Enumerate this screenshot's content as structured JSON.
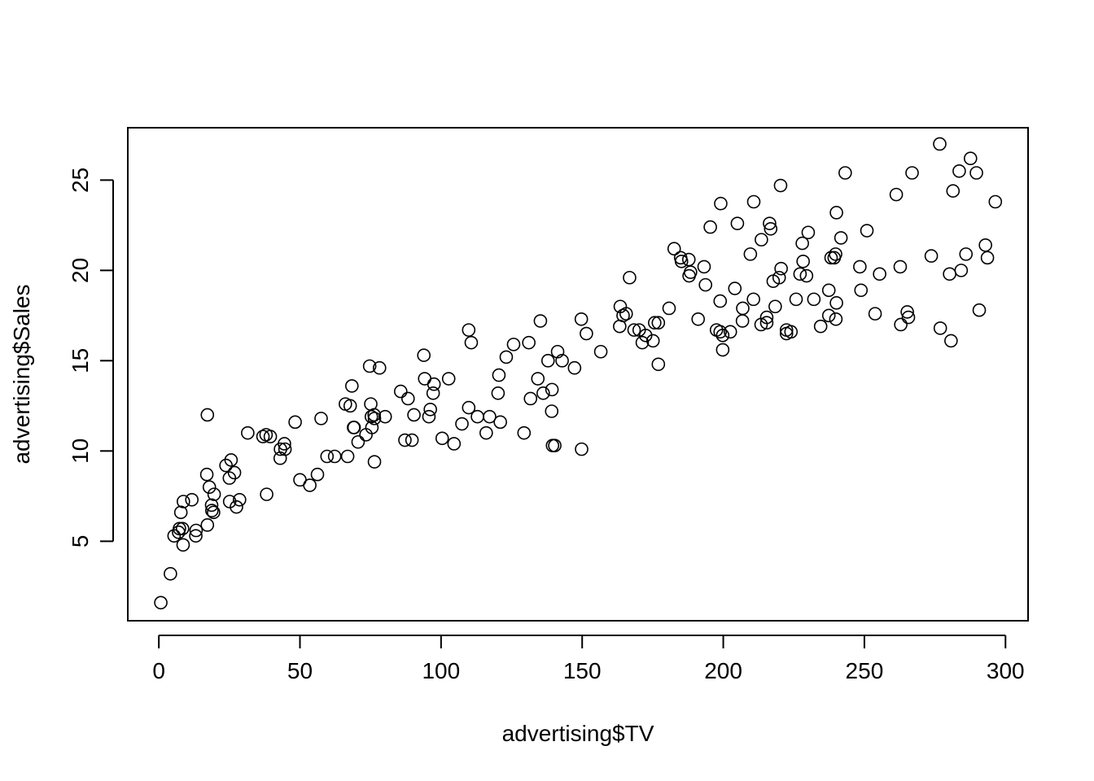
{
  "chart_data": {
    "type": "scatter",
    "title": "",
    "xlabel": "advertising$TV",
    "ylabel": "advertising$Sales",
    "xlim": [
      -11,
      308
    ],
    "ylim": [
      0.6,
      27.9
    ],
    "xticks": [
      0,
      50,
      100,
      150,
      200,
      250,
      300
    ],
    "yticks": [
      5,
      10,
      15,
      20,
      25
    ],
    "grid": false,
    "marker": "open-circle",
    "colors": {
      "marker": "#000000",
      "axis": "#000000",
      "background": "#ffffff"
    },
    "points": [
      [
        0.7,
        1.6
      ],
      [
        4.1,
        3.2
      ],
      [
        5.4,
        5.3
      ],
      [
        7.0,
        5.5
      ],
      [
        7.3,
        5.7
      ],
      [
        8.4,
        5.7
      ],
      [
        8.6,
        4.8
      ],
      [
        7.8,
        6.6
      ],
      [
        8.7,
        7.2
      ],
      [
        11.7,
        7.3
      ],
      [
        13.1,
        5.3
      ],
      [
        13.2,
        5.6
      ],
      [
        17.0,
        8.7
      ],
      [
        17.2,
        12.0
      ],
      [
        17.2,
        5.9
      ],
      [
        17.9,
        8.0
      ],
      [
        18.7,
        7.0
      ],
      [
        18.8,
        6.7
      ],
      [
        19.4,
        6.6
      ],
      [
        19.6,
        7.6
      ],
      [
        23.8,
        9.2
      ],
      [
        25.0,
        8.5
      ],
      [
        25.1,
        7.2
      ],
      [
        25.6,
        9.5
      ],
      [
        26.8,
        8.8
      ],
      [
        27.5,
        6.9
      ],
      [
        28.6,
        7.3
      ],
      [
        31.5,
        11.0
      ],
      [
        36.9,
        10.8
      ],
      [
        38.0,
        10.9
      ],
      [
        38.2,
        7.6
      ],
      [
        39.5,
        10.8
      ],
      [
        43.0,
        9.6
      ],
      [
        43.1,
        10.1
      ],
      [
        44.5,
        10.4
      ],
      [
        44.7,
        10.1
      ],
      [
        48.3,
        11.6
      ],
      [
        50.0,
        8.4
      ],
      [
        53.5,
        8.1
      ],
      [
        56.2,
        8.7
      ],
      [
        57.5,
        11.8
      ],
      [
        59.6,
        9.7
      ],
      [
        62.3,
        9.7
      ],
      [
        66.1,
        12.6
      ],
      [
        66.9,
        9.7
      ],
      [
        67.8,
        12.5
      ],
      [
        68.4,
        13.6
      ],
      [
        69.0,
        11.3
      ],
      [
        69.2,
        11.3
      ],
      [
        70.6,
        10.5
      ],
      [
        73.4,
        10.9
      ],
      [
        74.7,
        14.7
      ],
      [
        75.1,
        12.6
      ],
      [
        75.3,
        11.9
      ],
      [
        75.5,
        11.3
      ],
      [
        76.3,
        12.0
      ],
      [
        76.4,
        11.8
      ],
      [
        76.4,
        9.4
      ],
      [
        78.2,
        14.6
      ],
      [
        80.2,
        11.9
      ],
      [
        85.7,
        13.3
      ],
      [
        87.2,
        10.6
      ],
      [
        88.3,
        12.9
      ],
      [
        89.7,
        10.6
      ],
      [
        90.4,
        12.0
      ],
      [
        93.9,
        15.3
      ],
      [
        94.2,
        14.0
      ],
      [
        95.7,
        11.9
      ],
      [
        96.2,
        12.3
      ],
      [
        97.2,
        13.2
      ],
      [
        97.5,
        13.7
      ],
      [
        100.4,
        10.7
      ],
      [
        102.7,
        14.0
      ],
      [
        104.6,
        10.4
      ],
      [
        107.4,
        11.5
      ],
      [
        109.8,
        16.7
      ],
      [
        110.7,
        16.0
      ],
      [
        109.8,
        12.4
      ],
      [
        112.9,
        11.9
      ],
      [
        116.0,
        11.0
      ],
      [
        117.2,
        11.9
      ],
      [
        120.2,
        13.2
      ],
      [
        120.5,
        14.2
      ],
      [
        121.0,
        11.6
      ],
      [
        123.1,
        15.2
      ],
      [
        125.7,
        15.9
      ],
      [
        129.4,
        11.0
      ],
      [
        131.1,
        16.0
      ],
      [
        131.7,
        12.9
      ],
      [
        134.3,
        14.0
      ],
      [
        135.2,
        17.2
      ],
      [
        136.2,
        13.2
      ],
      [
        137.9,
        15.0
      ],
      [
        139.2,
        12.2
      ],
      [
        139.3,
        13.4
      ],
      [
        139.5,
        10.3
      ],
      [
        140.3,
        10.3
      ],
      [
        141.3,
        15.5
      ],
      [
        142.9,
        15.0
      ],
      [
        147.3,
        14.6
      ],
      [
        149.7,
        17.3
      ],
      [
        149.8,
        10.1
      ],
      [
        151.5,
        16.5
      ],
      [
        156.6,
        15.5
      ],
      [
        163.3,
        16.9
      ],
      [
        163.5,
        18.0
      ],
      [
        164.5,
        17.5
      ],
      [
        165.6,
        17.6
      ],
      [
        166.8,
        19.6
      ],
      [
        168.4,
        16.7
      ],
      [
        170.2,
        16.7
      ],
      [
        171.3,
        16.0
      ],
      [
        172.5,
        16.4
      ],
      [
        175.1,
        16.1
      ],
      [
        175.7,
        17.1
      ],
      [
        177.0,
        17.1
      ],
      [
        177.0,
        14.8
      ],
      [
        180.8,
        17.9
      ],
      [
        182.6,
        21.2
      ],
      [
        184.9,
        20.7
      ],
      [
        185.2,
        20.5
      ],
      [
        187.8,
        20.6
      ],
      [
        188.4,
        19.9
      ],
      [
        187.9,
        19.7
      ],
      [
        191.1,
        17.3
      ],
      [
        193.2,
        20.2
      ],
      [
        193.7,
        19.2
      ],
      [
        195.4,
        22.4
      ],
      [
        197.6,
        16.7
      ],
      [
        198.9,
        16.6
      ],
      [
        198.9,
        18.3
      ],
      [
        199.1,
        23.7
      ],
      [
        199.8,
        16.4
      ],
      [
        199.8,
        15.6
      ],
      [
        202.5,
        16.6
      ],
      [
        204.1,
        19.0
      ],
      [
        205.0,
        22.6
      ],
      [
        206.8,
        17.2
      ],
      [
        206.9,
        17.9
      ],
      [
        209.6,
        20.9
      ],
      [
        210.7,
        18.4
      ],
      [
        210.8,
        23.8
      ],
      [
        213.4,
        17.0
      ],
      [
        213.5,
        21.7
      ],
      [
        215.4,
        17.4
      ],
      [
        215.4,
        17.1
      ],
      [
        216.4,
        22.6
      ],
      [
        216.8,
        22.3
      ],
      [
        218.4,
        18.0
      ],
      [
        217.7,
        19.4
      ],
      [
        219.8,
        19.6
      ],
      [
        220.3,
        24.7
      ],
      [
        220.5,
        20.1
      ],
      [
        222.4,
        16.7
      ],
      [
        222.4,
        16.5
      ],
      [
        224.0,
        16.6
      ],
      [
        225.8,
        18.4
      ],
      [
        227.2,
        19.8
      ],
      [
        228.0,
        21.5
      ],
      [
        228.3,
        20.5
      ],
      [
        229.5,
        19.7
      ],
      [
        230.1,
        22.1
      ],
      [
        232.1,
        18.4
      ],
      [
        234.5,
        16.9
      ],
      [
        237.4,
        18.9
      ],
      [
        237.4,
        17.5
      ],
      [
        238.2,
        20.7
      ],
      [
        239.3,
        20.7
      ],
      [
        239.8,
        20.9
      ],
      [
        239.9,
        17.3
      ],
      [
        240.1,
        23.2
      ],
      [
        240.1,
        18.2
      ],
      [
        241.7,
        21.8
      ],
      [
        243.2,
        25.4
      ],
      [
        248.4,
        20.2
      ],
      [
        248.8,
        18.9
      ],
      [
        250.9,
        22.2
      ],
      [
        253.8,
        17.6
      ],
      [
        255.4,
        19.8
      ],
      [
        261.3,
        24.2
      ],
      [
        262.7,
        20.2
      ],
      [
        262.9,
        17.0
      ],
      [
        265.2,
        17.7
      ],
      [
        265.6,
        17.4
      ],
      [
        266.9,
        25.4
      ],
      [
        273.7,
        20.8
      ],
      [
        276.7,
        27.0
      ],
      [
        276.9,
        16.8
      ],
      [
        280.2,
        19.8
      ],
      [
        280.7,
        16.1
      ],
      [
        281.4,
        24.4
      ],
      [
        283.6,
        25.5
      ],
      [
        284.3,
        20.0
      ],
      [
        286.0,
        20.9
      ],
      [
        287.6,
        26.2
      ],
      [
        289.7,
        25.4
      ],
      [
        290.7,
        17.8
      ],
      [
        292.9,
        21.4
      ],
      [
        293.6,
        20.7
      ],
      [
        296.4,
        23.8
      ]
    ]
  }
}
